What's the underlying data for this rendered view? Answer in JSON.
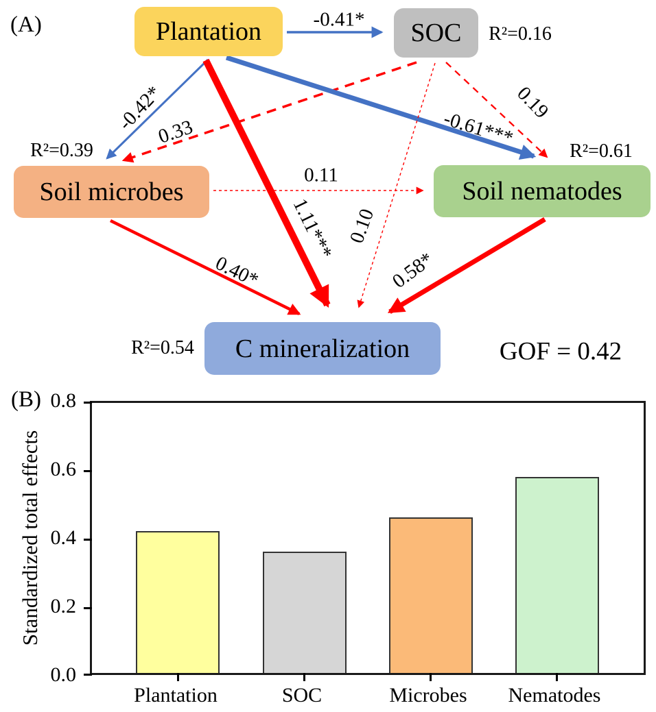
{
  "panelA": {
    "tag": "(A)",
    "gof_label": "GOF = 0.42",
    "colors": {
      "positive_path": "#FF0000",
      "negative_path": "#4472C4"
    },
    "nodes": [
      {
        "id": "plantation",
        "label": "Plantation",
        "color": "#FBD45C"
      },
      {
        "id": "soc",
        "label": "SOC",
        "color": "#BFBFBF",
        "r2": "R²=0.16"
      },
      {
        "id": "microbes",
        "label": "Soil microbes",
        "color": "#F4B183",
        "r2": "R²=0.39"
      },
      {
        "id": "nematodes",
        "label": "Soil nematodes",
        "color": "#A9D18E",
        "r2": "R²=0.61"
      },
      {
        "id": "cmin",
        "label": "C mineralization",
        "color": "#8FAADC",
        "r2": "R²=0.54"
      }
    ],
    "paths": [
      {
        "from": "Plantation",
        "to": "SOC",
        "label": "-0.41*",
        "effect": "negative",
        "style": "solid"
      },
      {
        "from": "Plantation",
        "to": "Soil microbes",
        "label": "-0.42*",
        "effect": "negative",
        "style": "solid"
      },
      {
        "from": "SOC",
        "to": "Soil microbes",
        "label": "0.33",
        "effect": "positive",
        "style": "dashed"
      },
      {
        "from": "SOC",
        "to": "Soil nematodes",
        "label": "0.19",
        "effect": "positive",
        "style": "dashed"
      },
      {
        "from": "Plantation",
        "to": "Soil nematodes",
        "label": "-0.61***",
        "effect": "negative",
        "style": "solid"
      },
      {
        "from": "Soil microbes",
        "to": "Soil nematodes",
        "label": "0.11",
        "effect": "positive",
        "style": "dotted"
      },
      {
        "from": "Plantation",
        "to": "C mineralization",
        "label": "1.11***",
        "effect": "positive",
        "style": "solid"
      },
      {
        "from": "SOC",
        "to": "C mineralization",
        "label": "0.10",
        "effect": "positive",
        "style": "dotted"
      },
      {
        "from": "Soil microbes",
        "to": "C mineralization",
        "label": "0.40*",
        "effect": "positive",
        "style": "solid"
      },
      {
        "from": "Soil nematodes",
        "to": "C mineralization",
        "label": "0.58*",
        "effect": "positive",
        "style": "solid"
      }
    ]
  },
  "panelB": {
    "tag": "(B)"
  },
  "chart_data": {
    "type": "bar",
    "categories": [
      "Plantation",
      "SOC",
      "Microbes",
      "Nematodes"
    ],
    "values": [
      0.42,
      0.36,
      0.46,
      0.58
    ],
    "bar_colors": [
      "#FFFF9E",
      "#D6D6D6",
      "#FBBA78",
      "#CDF2CD"
    ],
    "bar_border_color": "#333333",
    "ylabel": "Standardized total effects",
    "ylim": [
      0,
      0.8
    ],
    "yticks": [
      "0.0",
      "0.2",
      "0.4",
      "0.6",
      "0.8"
    ],
    "grid": false,
    "legend": false
  }
}
